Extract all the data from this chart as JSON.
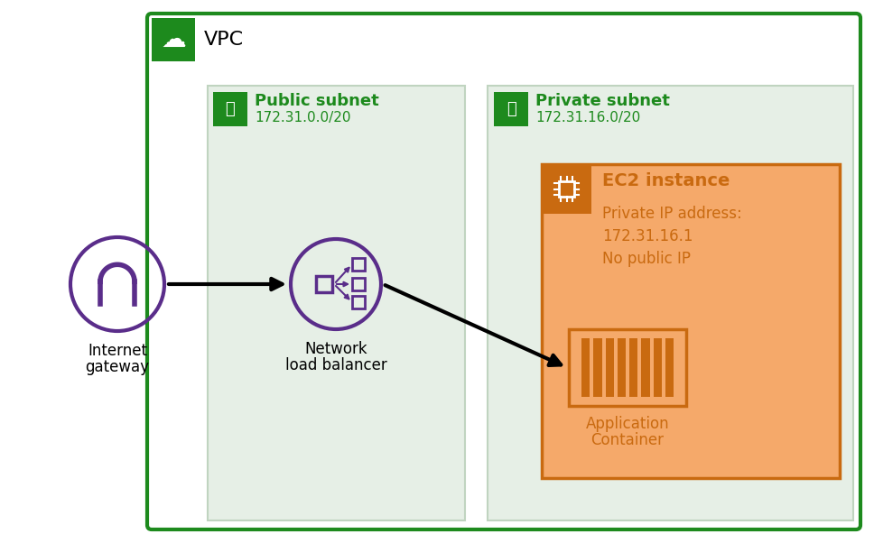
{
  "bg_color": "#ffffff",
  "vpc_border_color": "#1d8a1d",
  "vpc_bg_color": "#ffffff",
  "vpc_label": "VPC",
  "green_icon_bg": "#1d8a1d",
  "subnet_bg_color": "#e6efe6",
  "subnet_border_color": "#c0d4c0",
  "public_subnet_label": "Public subnet",
  "public_subnet_cidr": "172.31.0.0/20",
  "public_subnet_text_color": "#1d8a1d",
  "private_subnet_label": "Private subnet",
  "private_subnet_cidr": "172.31.16.0/20",
  "private_subnet_text_color": "#1d8a1d",
  "ec2_border_color": "#c96a10",
  "ec2_bg_color": "#f5a96a",
  "ec2_text_color": "#c96a10",
  "ec2_label": "EC2 instance",
  "ec2_ip_label": "Private IP address:",
  "ec2_ip": "172.31.16.1",
  "ec2_no_pub": "No public IP",
  "container_label_line1": "Application",
  "container_label_line2": "Container",
  "container_border_color": "#c96a10",
  "container_bg_color": "#f5a96a",
  "container_stripe_color": "#c96a10",
  "nlb_label_line1": "Network",
  "nlb_label_line2": "load balancer",
  "nlb_circle_color": "#5a2d8a",
  "igw_label_line1": "Internet",
  "igw_label_line2": "gateway",
  "igw_circle_color": "#5a2d8a",
  "arrow_color": "#000000",
  "text_color": "#000000"
}
